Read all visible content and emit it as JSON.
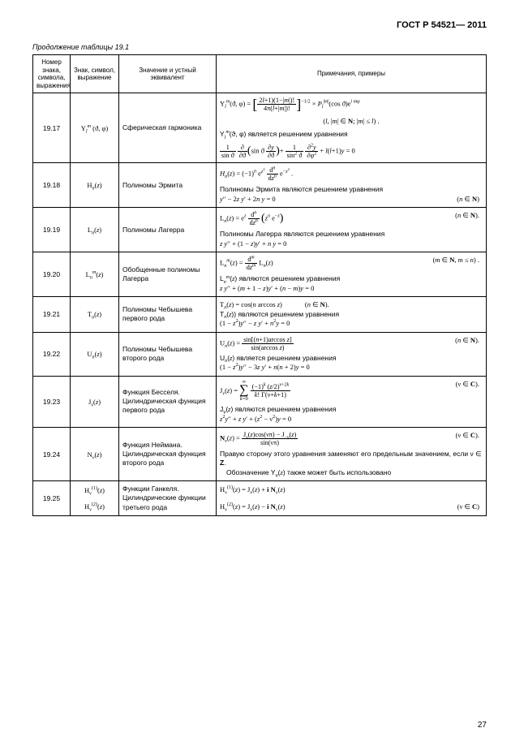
{
  "doc_header": "ГОСТ Р 54521— 2011",
  "caption": "Продолжение таблицы 19.1",
  "page_number": "27",
  "headers": {
    "c1": "Номер знака, символа, выражения",
    "c2": "Знак, символ, выражение",
    "c3": "Значение и устный эквивалент",
    "c4": "Примечания, примеры"
  },
  "rows": [
    {
      "num": "19.17",
      "symbol_html": "Y<sub><span class='mi'>l</span></sub><sup><span class='mi'>m</span></sup> (ϑ, φ)",
      "equiv": "Сферическая гармоника",
      "note_html": "<div style='margin-bottom:6px;'><span class='mline'>Y<sub><span class='mi'>l</span></sub><sup><span class='mi'>m</span></sup>(ϑ, φ) = <span class='bigb'>[</span><span class='frac'><span class='num'>2<span class='mi'>l</span>+1)(1−|<span class='mi'>m</span>|)!</span><span class='den'>4π(<span class='mi'>l</span>+|<span class='mi'>m</span>|)!</span></span><span class='bigb'>]</span><sup>−1/2</sup> × <span class='mi'>P</span><sub><span class='mi'>l</span></sub><sup>|<span class='mi'>m</span>|</sup>(cos ϑ)e<sup><span class='mi'>i m</span>φ</sup></span></div><div style='text-align:center;margin-bottom:4px;'>(<span class='mi'>l</span>, |<span class='mi'>m</span>| ∈ <span class='bold'>N</span>; |<span class='mi'>m</span>| ≤ <span class='mi'>l</span>) .</div><div class='rus' style='margin-bottom:6px;'>Y<sub><span class='mi'>l</span></sub><sup><span class='mi'>m</span></sup>(ϑ, φ) является решением уравнения</div><div><span class='mline'><span class='frac'><span class='num'>1</span><span class='den'>sin ϑ</span></span> <span class='frac'><span class='num'>∂</span><span class='den'>∂ϑ</span></span><span class='midb'>(</span>sin ϑ <span class='frac'><span class='num'>∂<span class='mi'>y</span></span><span class='den'>∂ϑ</span></span><span class='midb'>)</span>+ <span class='frac'><span class='num'>1</span><span class='den'>sin<sup>2</sup> ϑ</span></span> <span class='frac'><span class='num'>∂<sup>2</sup><span class='mi'>y</span></span><span class='den'>∂φ<sup>2</sup></span></span> + <span class='mi'>l</span>(<span class='mi'>l</span>+1)<span class='mi'>y</span> = 0</span></div>"
    },
    {
      "num": "19.18",
      "symbol_html": "H<sub><span class='mi'>n</span></sub>(<span class='mi'>z</span>)",
      "equiv": "Полиномы Эрмита",
      "note_html": "<div style='margin-bottom:4px;'><span class='mline'><span class='mi'>H</span><sub><span class='mi'>n</span></sub>(<span class='mi'>z</span>) = (−1)<sup><span class='mi'>n</span></sup> e<sup><span class='mi'>z</span><sup>2</sup></sup> <span class='frac'><span class='num'>d<sup><span class='mi'>n</span></sup></span><span class='den'>d<span class='mi'>z</span><sup><span class='mi'>n</span></sup></span></span> e<sup>−<span class='mi'>z</span><sup>2</sup></sup> .</span></div><div class='rus'>Полиномы Эрмита являются решением уравнения</div><div><span class='mi'>y</span>′′ − 2<span class='mi'>z y</span>′ + 2<span class='mi'>n y</span> = 0 <span class='cond'>(<span class='mi'>n</span> ∈ <span class='bold'>N</span>)</span></div>"
    },
    {
      "num": "19.19",
      "symbol_html": "L<sub><span class='mi'>n</span></sub>(<span class='mi'>z</span>)",
      "equiv": "Полиномы Лагерра",
      "note_html": "<div style='margin-bottom:4px;'><span class='mline'>L<sub><span class='mi'>n</span></sub>(<span class='mi'>z</span>) =  e<sup><span class='mi'>z</span></sup> <span class='frac'><span class='num'>d<sup><span class='mi'>n</span></sup></span><span class='den'>d<span class='mi'>z</span><sup><span class='mi'>n</span></sup></span></span> <span class='midb'>(</span><span class='mi'>z</span><sup><span class='mi'>n</span></sup> e<sup>−<span class='mi'>z</span></sup><span class='midb'>)</span></span><span class='cond'>(<span class='mi'>n</span> ∈ <span class='bold'>N</span>).</span></div><div class='rus'>Полиномы Лагерра являются решением уравнения</div><div><span class='mi'>z y</span>′′ + (1 − <span class='mi'>z</span>)<span class='mi'>y</span>′ + <span class='mi'>n y</span> = 0</div>"
    },
    {
      "num": "19.20",
      "symbol_html": "L<sub><span class='mi'>n</span></sub><sup><span class='mi'>m</span></sup>(<span class='mi'>z</span>)",
      "equiv": "Обобщенные полиномы Лагерра",
      "note_html": "<div style='margin-bottom:4px;'><span class='mline'>L<sub><span class='mi'>n</span></sub><sup><span class='mi'>m</span></sup>(<span class='mi'>z</span>) = <span class='frac'><span class='num'>d<sup><span class='mi'>m</span></sup></span><span class='den'>d<span class='mi'>z</span><sup><span class='mi'>m</span></sup></span></span> L<sub><span class='mi'>n</span></sub>(<span class='mi'>z</span>)</span><span class='cond'>(<span class='mi'>m</span> ∈ <span class='bold'>N</span>, <span class='mi'>m</span> ≤ <span class='mi'>n</span>) .</span></div><div class='rus'>L<sub><span class='mi'>n</span></sub><sup><span class='mi'>m</span></sup>(<span class='mi'>z</span>) являются решением уравнения</div><div><span class='mi'>z y</span>′′ + (<span class='mi'>m</span> + 1 − <span class='mi'>z</span>)<span class='mi'>y</span>′ + (<span class='mi'>n</span> − <span class='mi'>m</span>)<span class='mi'>y</span> = 0</div>"
    },
    {
      "num": "19.21",
      "symbol_html": "T<sub><span class='mi'>n</span></sub>(<span class='mi'>z</span>)",
      "equiv": "Полиномы Чебышева первого рода",
      "note_html": "<div>T<sub><span class='mi'>n</span></sub>(<span class='mi'>z</span>) = cos(<span class='mi'>n</span> arccos <span class='mi'>z</span>)<span class='cond' style='float:none;margin-left:28px;'>(<span class='mi'>n</span> ∈ <span class='bold'>N</span>).</span></div><div class='rus'>T<sub><span class='mi'>n</span></sub>(<span class='mi'>z</span>)) являются решением уравнения</div><div>(1 − <span class='mi'>z</span><sup>2</sup>)<span class='mi'>y</span>′′ − <span class='mi'>z y</span>′ + <span class='mi'>n</span><sup>2</sup><span class='mi'>y</span> = 0</div>"
    },
    {
      "num": "19.22",
      "symbol_html": "U<sub><span class='mi'>n</span></sub>(<span class='mi'>z</span>)",
      "equiv": "Полиномы Чебышева второго рода",
      "note_html": "<div style='margin-bottom:3px;'><span class='mline'>U<sub><span class='mi'>n</span></sub>(<span class='mi'>z</span>) = <span class='frac'><span class='num'>sin[(<span class='mi'>n</span>+1)arccos <span class='mi'>z</span>]</span><span class='den'>sin(arccos <span class='mi'>z</span>)</span></span></span><span class='cond'>(<span class='mi'>n</span> ∈ <span class='bold'>N</span>).</span></div><div class='rus'>U<sub><span class='mi'>n</span></sub>(<span class='mi'>z</span>) является решением уравнения</div><div>(1 − <span class='mi'>z</span><sup>2</sup>)<span class='mi'>y</span>′′ − 3<span class='mi'>z y</span>′ + <span class='mi'>n</span>(<span class='mi'>n</span> + 2)<span class='mi'>y</span> = 0</div>"
    },
    {
      "num": "19.23",
      "symbol_html": "J<sub>ν</sub>(<span class='mi'>z</span>)",
      "equiv": "Функция Бесселя. Цилиндрическая функция первого рода",
      "note_html": "<div style='margin-bottom:4px;'><span class='mline'>J<sub>ν</sub>(<span class='mi'>z</span>) = </span> <span class='sumSign'><span class='top'>∞</span><span class='mid'>∑</span><span class='bot'><span class='mi'>k</span>=0</span></span> <span class='mline'><span class='frac'><span class='num'>(−1)<sup><span class='mi'>k</span></sup> (<span class='mi'>z</span>/2)<sup>ν+2<span class='mi'>k</span></sup></span><span class='den'><span class='mi'>k</span>! Γ(ν+<span class='mi'>k</span>+1)</span></span></span><span class='cond'>(ν ∈ <span class='bold'>C</span>).</span></div><div class='rus'>J<sub>ν</sub>(<span class='mi'>z</span>) являются решением уравнения</div><div><span class='mi'>z</span><sup>2</sup><span class='mi'>y</span>′′ + <span class='mi'>z y</span>′ + (<span class='mi'>z</span><sup>2</sup> − ν<sup>2</sup>)<span class='mi'>y</span> = 0</div>"
    },
    {
      "num": "19.24",
      "symbol_html": "N<sub>ν</sub>(<span class='mi'>z</span>)",
      "equiv": "Функция Неймана. Цилиндрическая функция второго рода",
      "note_html": "<div style='margin-bottom:4px;'><span class='mline'><span class='bold'>N</span><sub>ν</sub>(<span class='mi'>z</span>) = <span class='frac'><span class='num'>J<sub>ν</sub>(<span class='mi'>z</span>)cos(νπ) − J<sub>−ν</sub>(<span class='mi'>z</span>)</span><span class='den'>sin(νπ)</span></span></span><span class='cond'>(ν ∈ <span class='bold'>C</span>).</span></div><div class='rus'>Правую сторону этого уравнения заменяют его предельным значением, если ν ∈ <span class='bold'>Z</span>.</div><div class='rus' style='text-indent:8px;'>Обозначение Y<sub>ν</sub>(<span class='mi'>z</span>) также может быть использовано</div>"
    },
    {
      "num": "19.25",
      "symbol_html": "H<sub>ν</sub><sup>(1)</sup>(<span class='mi'>z</span>)<br><br>H<sub>ν</sub><sup>(2)</sup>(<span class='mi'>z</span>)",
      "equiv": "Функции Ганкеля. Цилиндрические функции третьего рода",
      "note_html": "<div style='margin-bottom:10px;'>H<sub>ν</sub><sup>(1)</sup>(<span class='mi'>z</span>) = J<sub>ν</sub>(<span class='mi'>z</span>) + <span class='bold'>i N</span><sub>ν</sub>(<span class='mi'>z</span>)</div><div>H<sub>ν</sub><sup>(2)</sup>(<span class='mi'>z</span>) = J<sub>ν</sub>(<span class='mi'>z</span>) − <span class='bold'>i N</span><sub>ν</sub>(<span class='mi'>z</span>)<span class='cond'>(ν ∈ <span class='bold'>C</span>)</span></div>"
    }
  ]
}
